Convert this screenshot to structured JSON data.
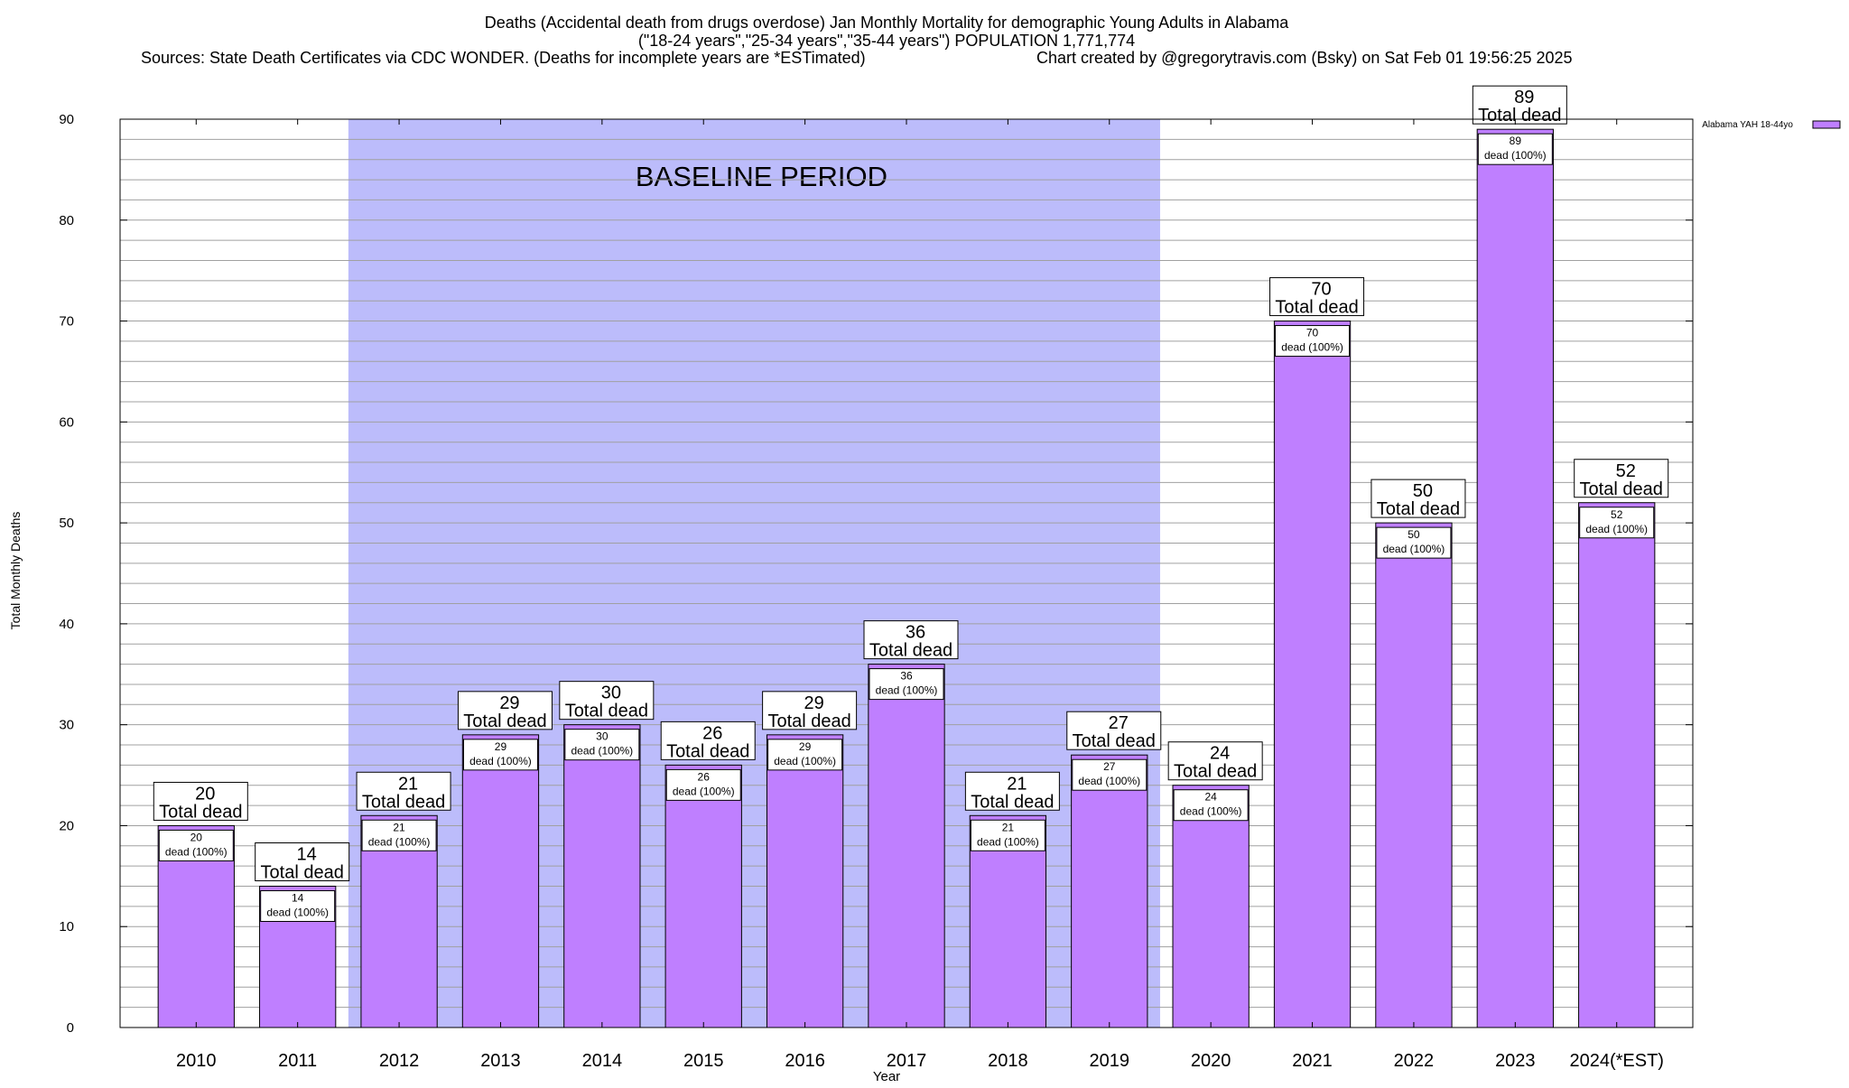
{
  "title_lines": [
    "Deaths (Accidental death from drugs overdose) Jan Monthly Mortality for demographic Young Adults in Alabama",
    "(\"18-24 years\",\"25-34 years\",\"35-44 years\") POPULATION 1,771,774"
  ],
  "sources_text": "Sources: State Death Certificates via CDC WONDER. (Deaths for incomplete years are *ESTimated)",
  "credit_text": "Chart created by @gregorytravis.com (Bsky) on Sat Feb 01 19:56:25 2025",
  "baseline_label": "BASELINE PERIOD",
  "baseline_range": [
    "2012",
    "2019"
  ],
  "label_total_suffix": "Total dead",
  "label_inner_suffix": "dead (100%)",
  "colors": {
    "bar_fill": "#bf7fff",
    "baseline_fill": "#bcbcfb",
    "grid": "#a0a0a0"
  },
  "chart_data": {
    "type": "bar",
    "categories": [
      "2010",
      "2011",
      "2012",
      "2013",
      "2014",
      "2015",
      "2016",
      "2017",
      "2018",
      "2019",
      "2020",
      "2021",
      "2022",
      "2023",
      "2024(*EST)"
    ],
    "series": [
      {
        "name": "Alabama YAH 18-44yo",
        "values": [
          20,
          14,
          21,
          29,
          30,
          26,
          29,
          36,
          21,
          27,
          24,
          70,
          50,
          89,
          52
        ]
      }
    ],
    "xlabel": "Year",
    "ylabel": "Total Monthly Deaths",
    "ylim": [
      0,
      90
    ],
    "yticks": [
      0,
      10,
      20,
      30,
      40,
      50,
      60,
      70,
      80,
      90
    ],
    "minor_step": 2,
    "legend_position": "top-right",
    "grid": true
  }
}
